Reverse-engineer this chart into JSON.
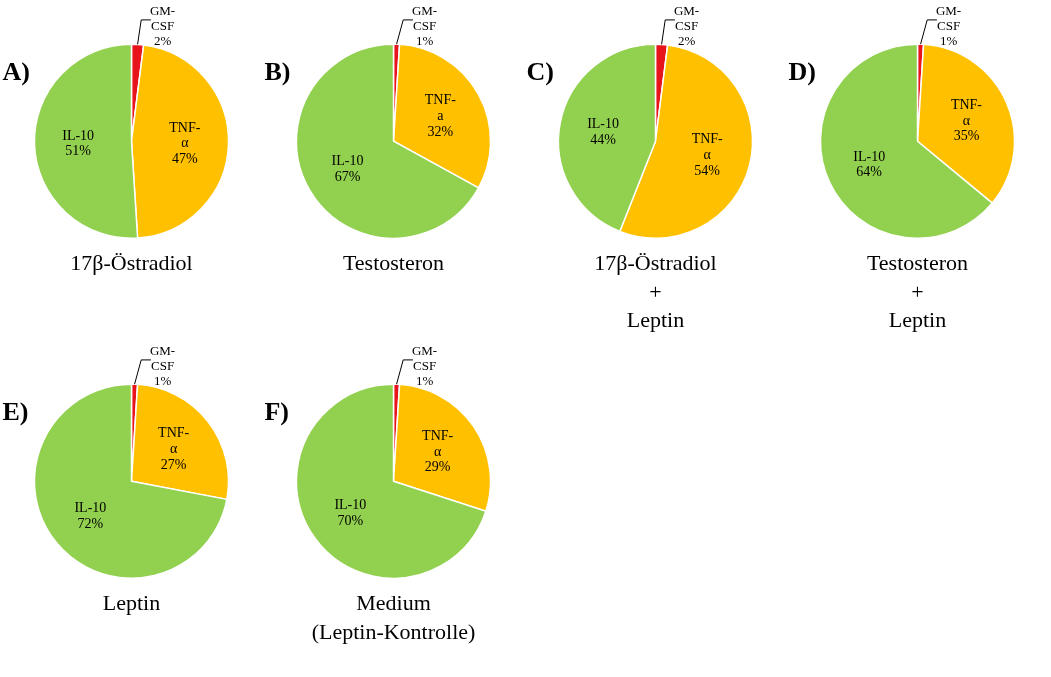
{
  "chart_data": [
    {
      "type": "pie",
      "title": "A)",
      "xlabel": "17β-Östradiol",
      "categories": [
        "GM-CSF",
        "TNF-α",
        "IL-10"
      ],
      "values": [
        2,
        47,
        51
      ],
      "value_labels": [
        "2%",
        "47%",
        "51%"
      ],
      "colors": [
        "#e8141b",
        "#ffc000",
        "#92d050"
      ]
    },
    {
      "type": "pie",
      "title": "B)",
      "xlabel": "Testosteron",
      "categories": [
        "GM-CSF",
        "TNF-a",
        "IL-10"
      ],
      "values": [
        1,
        32,
        67
      ],
      "value_labels": [
        "1%",
        "32%",
        "67%"
      ],
      "colors": [
        "#e8141b",
        "#ffc000",
        "#92d050"
      ]
    },
    {
      "type": "pie",
      "title": "C)",
      "xlabel": "17β-Östradiol\n+\nLeptin",
      "categories": [
        "GM-CSF",
        "TNF-α",
        "IL-10"
      ],
      "values": [
        2,
        54,
        44
      ],
      "value_labels": [
        "2%",
        "54%",
        "44%"
      ],
      "colors": [
        "#e8141b",
        "#ffc000",
        "#92d050"
      ]
    },
    {
      "type": "pie",
      "title": "D)",
      "xlabel": "Testosteron\n+\nLeptin",
      "categories": [
        "GM-CSF",
        "TNF-α",
        "IL-10"
      ],
      "values": [
        1,
        35,
        64
      ],
      "value_labels": [
        "1%",
        "35%",
        "64%"
      ],
      "colors": [
        "#e8141b",
        "#ffc000",
        "#92d050"
      ]
    },
    {
      "type": "pie",
      "title": "E)",
      "xlabel": "Leptin",
      "categories": [
        "GM-CSF",
        "TNF-α",
        "IL-10"
      ],
      "values": [
        1,
        27,
        72
      ],
      "value_labels": [
        "1%",
        "27%",
        "72%"
      ],
      "colors": [
        "#e8141b",
        "#ffc000",
        "#92d050"
      ]
    },
    {
      "type": "pie",
      "title": "F)",
      "xlabel": "Medium\n(Leptin-Kontrolle)",
      "categories": [
        "GM-CSF",
        "TNF-α",
        "IL-10"
      ],
      "values": [
        1,
        29,
        70
      ],
      "value_labels": [
        "1%",
        "29%",
        "70%"
      ],
      "colors": [
        "#e8141b",
        "#ffc000",
        "#92d050"
      ]
    }
  ]
}
